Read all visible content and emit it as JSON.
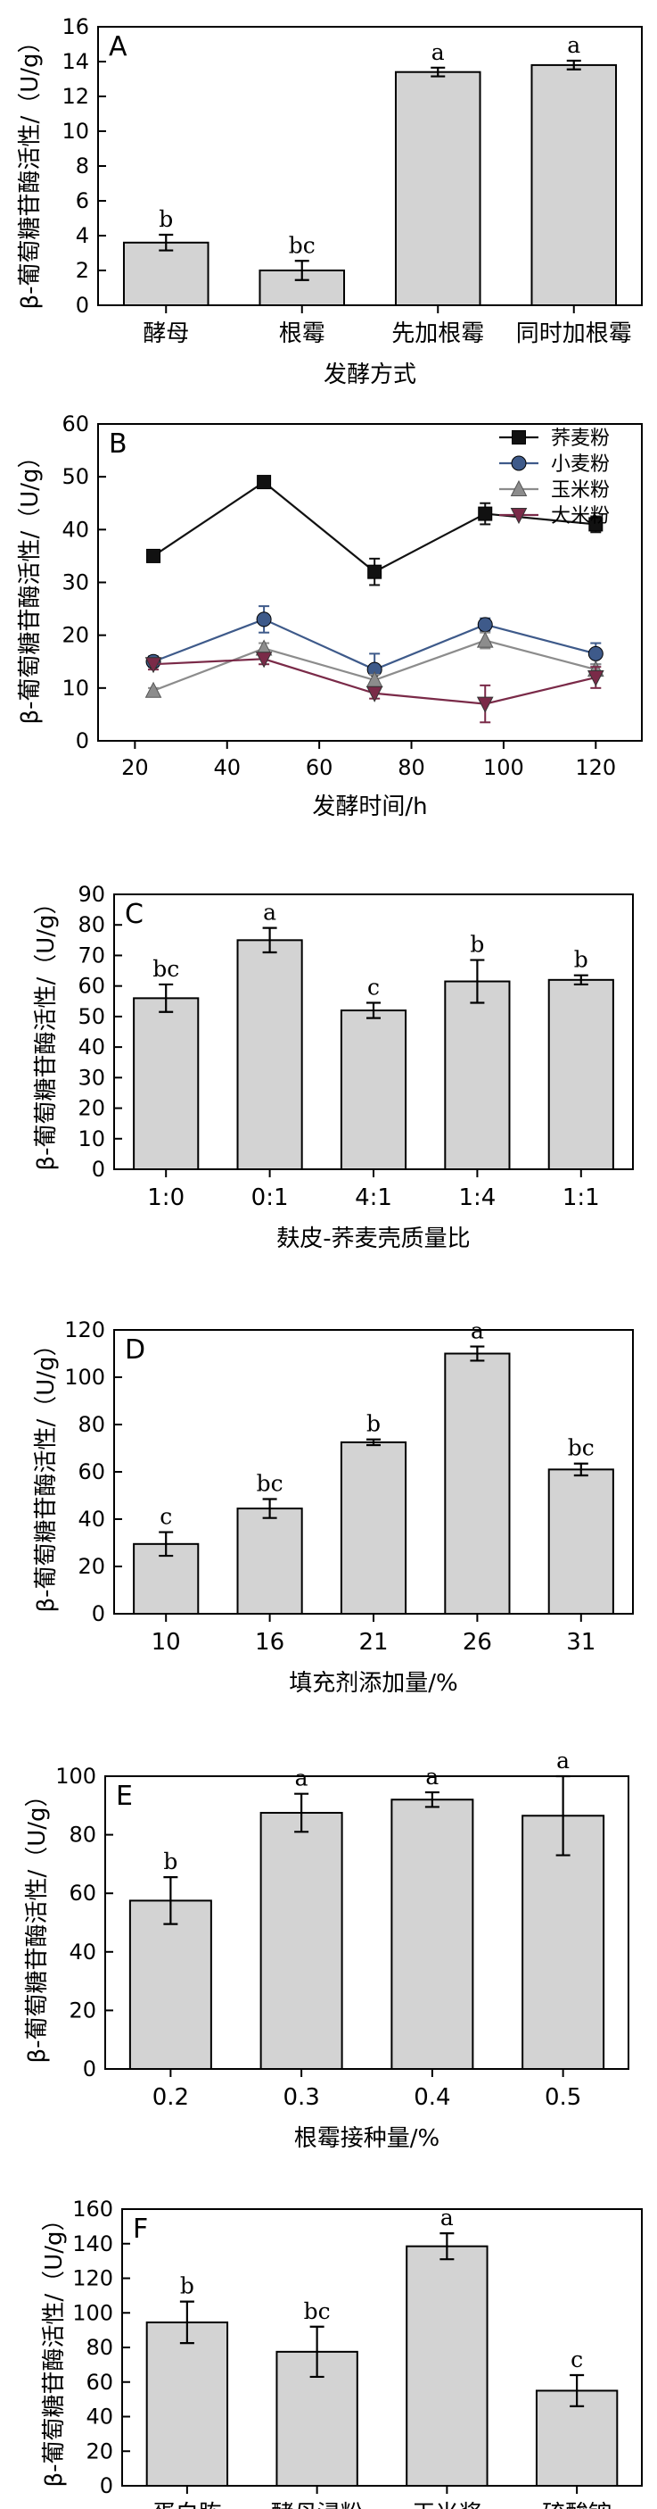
{
  "chart_data": [
    {
      "id": "A",
      "type": "bar",
      "panel_label": "A",
      "ylabel": "β-葡萄糖苷酶活性/（U/g）",
      "xlabel": "发酵方式",
      "ylim": [
        0,
        16
      ],
      "yticks": [
        0,
        2,
        4,
        6,
        8,
        10,
        12,
        14,
        16
      ],
      "categories": [
        "酵母",
        "根霉",
        "先加根霉",
        "同时加根霉"
      ],
      "values": [
        3.6,
        2.0,
        13.4,
        13.8
      ],
      "errors": [
        0.45,
        0.55,
        0.25,
        0.25
      ],
      "letters": [
        "b",
        "bc",
        "a",
        "a"
      ]
    },
    {
      "id": "B",
      "type": "line",
      "panel_label": "B",
      "ylabel": "β-葡萄糖苷酶活性/（U/g）",
      "xlabel": "发酵时间/h",
      "ylim": [
        0,
        60
      ],
      "yticks": [
        0,
        10,
        20,
        30,
        40,
        50,
        60
      ],
      "xlim": [
        12,
        130
      ],
      "xticks": [
        20,
        40,
        60,
        80,
        100,
        120
      ],
      "x": [
        24,
        48,
        72,
        96,
        120
      ],
      "legend_position": "top-right",
      "series": [
        {
          "name": "荞麦粉",
          "marker": "square",
          "color": "#111111",
          "values": [
            35,
            49,
            32,
            43,
            41
          ],
          "errors": [
            0.8,
            0.8,
            2.5,
            2.0,
            1.5
          ]
        },
        {
          "name": "小麦粉",
          "marker": "circle",
          "color": "#3e5a8a",
          "values": [
            15,
            23,
            13.5,
            22,
            16.5
          ],
          "errors": [
            1.0,
            2.5,
            3.0,
            1.2,
            2.0
          ]
        },
        {
          "name": "玉米粉",
          "marker": "triangle-up",
          "color": "#8c8c8c",
          "values": [
            9.5,
            17.5,
            11.5,
            19,
            13.5
          ],
          "errors": [
            0.5,
            1.0,
            1.0,
            1.5,
            1.0
          ]
        },
        {
          "name": "大米粉",
          "marker": "triangle-down",
          "color": "#7a2a48",
          "values": [
            14.5,
            15.5,
            9,
            7,
            12
          ],
          "errors": [
            1.0,
            1.0,
            1.0,
            3.5,
            2.0
          ]
        }
      ]
    },
    {
      "id": "C",
      "type": "bar",
      "panel_label": "C",
      "ylabel": "β-葡萄糖苷酶活性/（U/g）",
      "xlabel": "麸皮-荞麦壳质量比",
      "ylim": [
        0,
        90
      ],
      "yticks": [
        0,
        10,
        20,
        30,
        40,
        50,
        60,
        70,
        80,
        90
      ],
      "categories": [
        "1:0",
        "0:1",
        "4:1",
        "1:4",
        "1:1"
      ],
      "values": [
        56,
        75,
        52,
        61.5,
        62
      ],
      "errors": [
        4.5,
        4.0,
        2.5,
        7.0,
        1.5
      ],
      "letters": [
        "bc",
        "a",
        "c",
        "b",
        "b"
      ]
    },
    {
      "id": "D",
      "type": "bar",
      "panel_label": "D",
      "ylabel": "β-葡萄糖苷酶活性/（U/g）",
      "xlabel": "填充剂添加量/%",
      "ylim": [
        0,
        120
      ],
      "yticks": [
        0,
        20,
        40,
        60,
        80,
        100,
        120
      ],
      "categories": [
        "10",
        "16",
        "21",
        "26",
        "31"
      ],
      "values": [
        29.5,
        44.5,
        72.5,
        110,
        61
      ],
      "errors": [
        5.0,
        4.0,
        1.2,
        3.0,
        2.5
      ],
      "letters": [
        "c",
        "bc",
        "b",
        "a",
        "bc"
      ]
    },
    {
      "id": "E",
      "type": "bar",
      "panel_label": "E",
      "ylabel": "β-葡萄糖苷酶活性/（U/g）",
      "xlabel": "根霉接种量/%",
      "ylim": [
        0,
        100
      ],
      "yticks": [
        0,
        20,
        40,
        60,
        80,
        100
      ],
      "categories": [
        "0.2",
        "0.3",
        "0.4",
        "0.5"
      ],
      "values": [
        57.5,
        87.5,
        92,
        86.5
      ],
      "errors": [
        8.0,
        6.5,
        2.5,
        13.5
      ],
      "letters": [
        "b",
        "a",
        "a",
        "a"
      ]
    },
    {
      "id": "F",
      "type": "bar",
      "panel_label": "F",
      "ylabel": "β-葡萄糖苷酶活性/（U/g）",
      "xlabel": "",
      "ylim": [
        0,
        160
      ],
      "yticks": [
        0,
        20,
        40,
        60,
        80,
        100,
        120,
        140,
        160
      ],
      "categories": [
        "蛋白胨",
        "酵母浸粉",
        "玉米浆",
        "硫酸铵"
      ],
      "values": [
        94.5,
        77.5,
        138.5,
        55
      ],
      "errors": [
        12.0,
        14.5,
        7.5,
        9.0
      ],
      "letters": [
        "b",
        "bc",
        "a",
        "c"
      ]
    }
  ]
}
